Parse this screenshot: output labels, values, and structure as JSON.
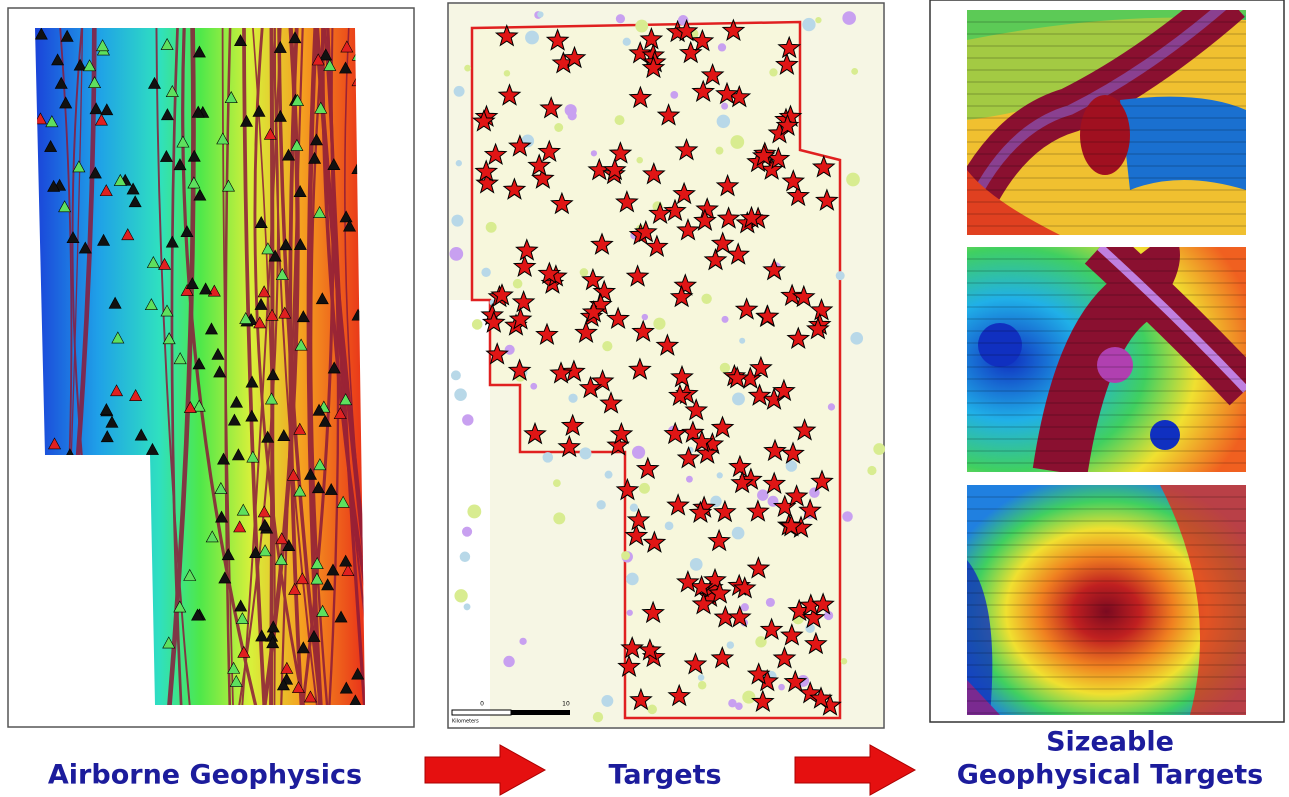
{
  "captions": [
    {
      "text": "Airborne Geophysics"
    },
    {
      "text": "Targets"
    },
    {
      "lines": [
        "Sizeable",
        "Geophysical Targets"
      ]
    }
  ],
  "scale_bar": {
    "labels": [
      "0",
      "10"
    ],
    "unit": "Kilometers"
  }
}
